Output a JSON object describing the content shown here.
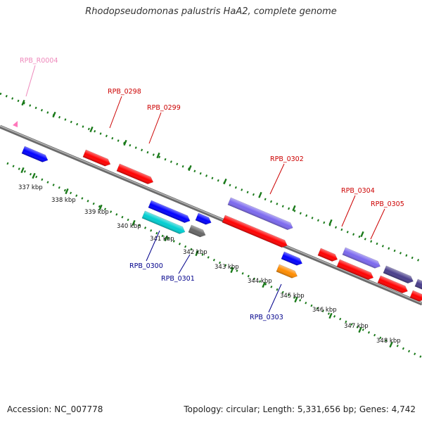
{
  "title": "Rhodopseudomonas palustris HaA2, complete genome",
  "footer": {
    "accession": "Accession: NC_007778",
    "topology": "Topology: circular; Length: 5,331,656 bp; Genes: 4,742"
  },
  "scale_labels": [
    "337 kbp",
    "338 kbp",
    "339 kbp",
    "340 kbp",
    "341 kbp",
    "342 kbp",
    "343 kbp",
    "344 kbp",
    "345 kbp",
    "346 kbp",
    "347 kbp",
    "348 kbp"
  ],
  "colors": {
    "backbone": "#888888",
    "tick": "#1a7a1a",
    "label_red": "#cc0000",
    "label_blue": "#00008b",
    "label_pink": "#ee88bb"
  },
  "gene_labels": [
    {
      "id": "rpb-r0004",
      "text": "RPB_R0004",
      "color": "#ee88bb"
    },
    {
      "id": "rpb-0298",
      "text": "RPB_0298",
      "color": "#cc0000"
    },
    {
      "id": "rpb-0299",
      "text": "RPB_0299",
      "color": "#cc0000"
    },
    {
      "id": "rpb-0302",
      "text": "RPB_0302",
      "color": "#cc0000"
    },
    {
      "id": "rpb-0304",
      "text": "RPB_0304",
      "color": "#cc0000"
    },
    {
      "id": "rpb-0305",
      "text": "RPB_0305",
      "color": "#cc0000"
    },
    {
      "id": "rpb-0300",
      "text": "RPB_0300",
      "color": "#00008b"
    },
    {
      "id": "rpb-0301",
      "text": "RPB_0301",
      "color": "#00008b"
    },
    {
      "id": "rpb-0303",
      "text": "RPB_0303",
      "color": "#00008b"
    }
  ],
  "gene_colors": [
    "#ff0000",
    "#0000ff",
    "#7b68ee",
    "#00ced1",
    "#666666",
    "#ff8c00",
    "#483d8b",
    "#ff77bb"
  ]
}
